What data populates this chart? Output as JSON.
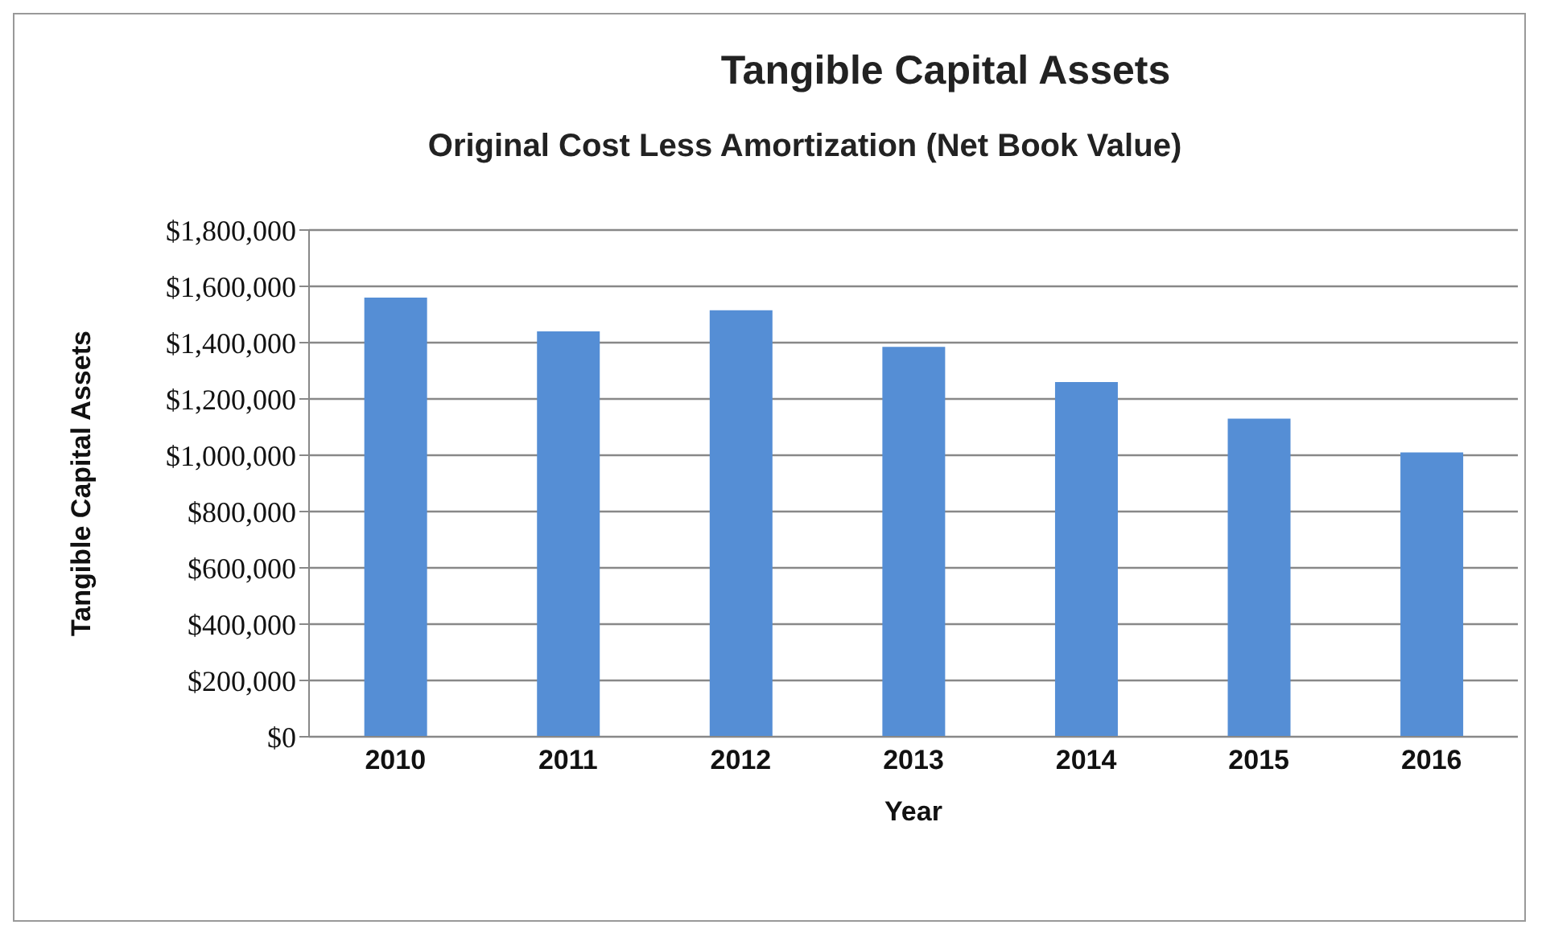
{
  "chart_data": {
    "type": "bar",
    "title": "Tangible Capital Assets",
    "subtitle": "Original Cost Less Amortization (Net Book Value)",
    "xlabel": "Year",
    "ylabel": "Tangible Capital Assets",
    "categories": [
      "2010",
      "2011",
      "2012",
      "2013",
      "2014",
      "2015",
      "2016"
    ],
    "values": [
      1560000,
      1440000,
      1515000,
      1385000,
      1260000,
      1130000,
      1010000
    ],
    "color": "#558ed5",
    "ylim": [
      0,
      1800000
    ],
    "yticks": [
      {
        "value": 0,
        "label": "$0"
      },
      {
        "value": 200000,
        "label": "$200,000"
      },
      {
        "value": 400000,
        "label": "$400,000"
      },
      {
        "value": 600000,
        "label": "$600,000"
      },
      {
        "value": 800000,
        "label": "$800,000"
      },
      {
        "value": 1000000,
        "label": "$1,000,000"
      },
      {
        "value": 1200000,
        "label": "$1,200,000"
      },
      {
        "value": 1400000,
        "label": "$1,400,000"
      },
      {
        "value": 1600000,
        "label": "$1,600,000"
      },
      {
        "value": 1800000,
        "label": "$1,800,000"
      }
    ],
    "grid": "y",
    "legend": false
  }
}
